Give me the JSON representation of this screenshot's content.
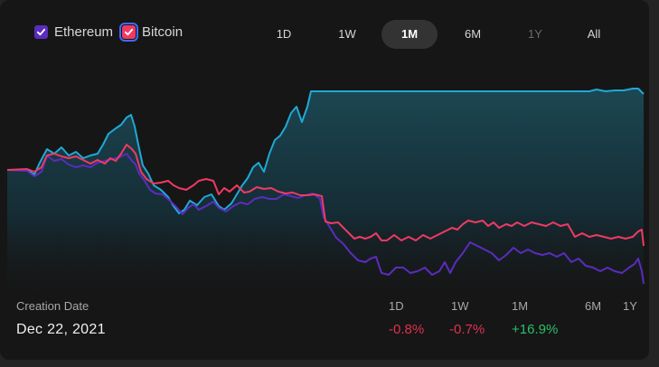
{
  "legend": [
    {
      "label": "Ethereum",
      "checked": true,
      "color": "#5b2cbe"
    },
    {
      "label": "Bitcoin",
      "checked": true,
      "color": "#ef3a63"
    }
  ],
  "ranges": [
    {
      "label": "1D",
      "state": "normal"
    },
    {
      "label": "1W",
      "state": "normal"
    },
    {
      "label": "1M",
      "state": "active"
    },
    {
      "label": "6M",
      "state": "normal"
    },
    {
      "label": "1Y",
      "state": "disabled"
    },
    {
      "label": "All",
      "state": "normal"
    }
  ],
  "creation": {
    "label": "Creation Date",
    "date": "Dec 22, 2021"
  },
  "performance": {
    "labels": [
      "1D",
      "1W",
      "1M",
      "6M",
      "1Y"
    ],
    "values": [
      {
        "text": "-0.8%",
        "sign": "negative"
      },
      {
        "text": "-0.7%",
        "sign": "negative"
      },
      {
        "text": "+16.9%",
        "sign": "positive"
      }
    ]
  },
  "colors": {
    "portfolio": "#1fa9d6",
    "ethereum": "#5b2cbe",
    "bitcoin": "#ef3a63",
    "positive": "#27c06a",
    "negative": "#e0314f"
  }
}
